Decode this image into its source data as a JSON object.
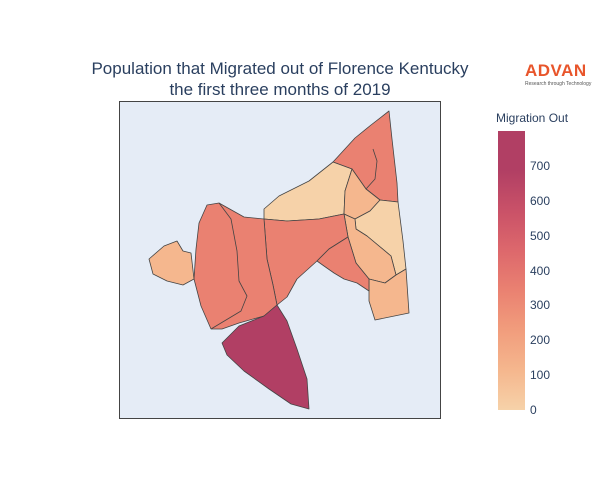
{
  "title_line1": "Population that Migrated out of Florence Kentucky",
  "title_line2": "the first three months of 2019",
  "logo": {
    "word": "ADVAN",
    "tagline": "Research through Technology"
  },
  "colorbar": {
    "title": "Migration Out",
    "min": 0,
    "max": 800,
    "ticks": [
      "700",
      "600",
      "500",
      "400",
      "300",
      "200",
      "100",
      "0"
    ]
  },
  "colors": {
    "scale": [
      "#f6d2a9",
      "#f5b78e",
      "#f19c7c",
      "#ea8171",
      "#dd686c",
      "#ca5268",
      "#b13f64"
    ],
    "map_background": "#e5ecf6",
    "border": "#444444"
  },
  "regions_count": 13
}
